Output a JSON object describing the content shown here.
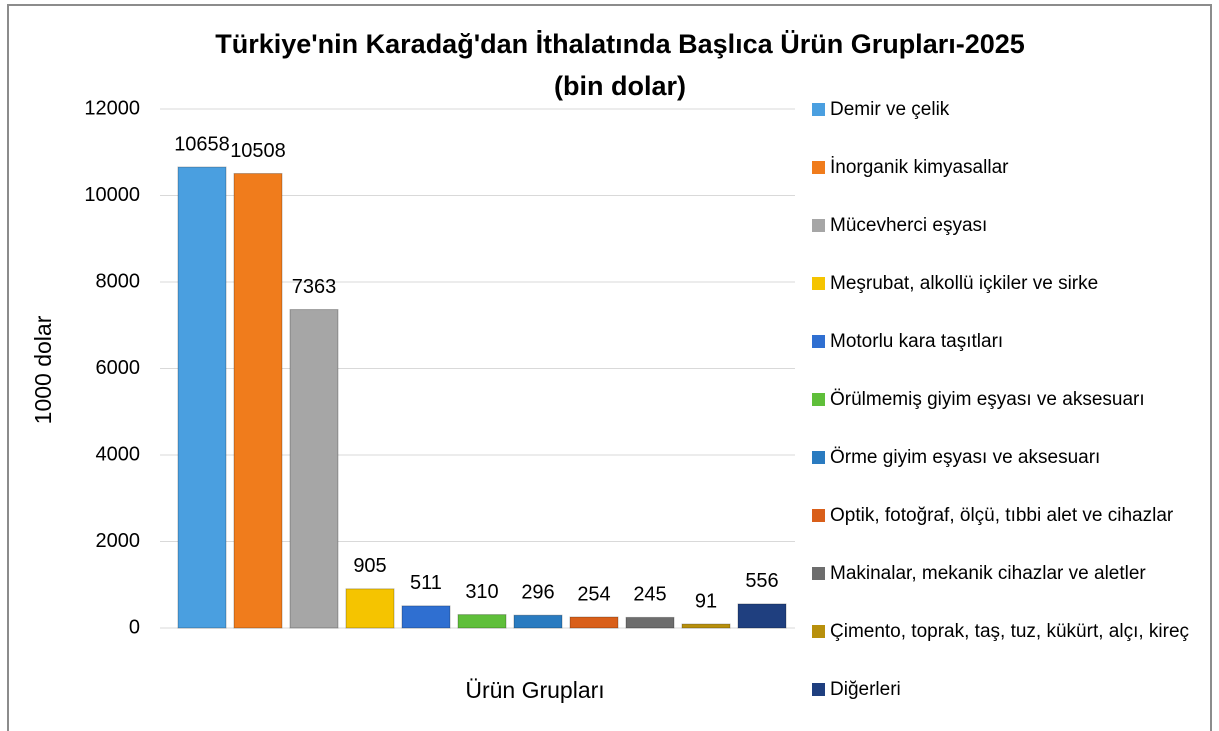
{
  "chart_data": {
    "type": "bar",
    "title": "Türkiye'nin Karadağ'dan İthalatında Başlıca Ürün Grupları-2025",
    "subtitle": "(bin dolar)",
    "x_label": "Ürün Grupları",
    "y_label": "1000 dolar",
    "ylim": [
      0,
      12000
    ],
    "yticks": [
      0,
      2000,
      4000,
      6000,
      8000,
      10000,
      12000
    ],
    "grid": true,
    "legend": "right",
    "series": [
      {
        "name": "Demir ve çelik",
        "color": "#4a9fe0",
        "values": [
          10658
        ]
      },
      {
        "name": "İnorganik kimyasallar",
        "color": "#f07c1c",
        "values": [
          10508
        ]
      },
      {
        "name": "Mücevherci eşyası",
        "color": "#a6a6a6",
        "values": [
          7363
        ]
      },
      {
        "name": "Meşrubat, alkollü içkiler ve sirke",
        "color": "#f5c400",
        "values": [
          905
        ]
      },
      {
        "name": "Motorlu kara taşıtları",
        "color": "#2f6fd1",
        "values": [
          511
        ]
      },
      {
        "name": "Örülmemiş giyim eşyası ve aksesuarı",
        "color": "#5fbf3a",
        "values": [
          310
        ]
      },
      {
        "name": "Örme giyim eşyası ve aksesuarı",
        "color": "#2a7bc0",
        "values": [
          296
        ]
      },
      {
        "name": "Optik, fotoğraf, ölçü, tıbbi alet ve cihazlar",
        "color": "#d95f1a",
        "values": [
          254
        ]
      },
      {
        "name": "Makinalar, mekanik cihazlar ve aletler",
        "color": "#6d6d6d",
        "values": [
          245
        ]
      },
      {
        "name": "Çimento, toprak, taş, tuz, kükürt, alçı, kireç",
        "color": "#b8900c",
        "values": [
          91
        ]
      },
      {
        "name": "Diğerleri",
        "color": "#1f3f7f",
        "values": [
          556
        ]
      }
    ]
  }
}
